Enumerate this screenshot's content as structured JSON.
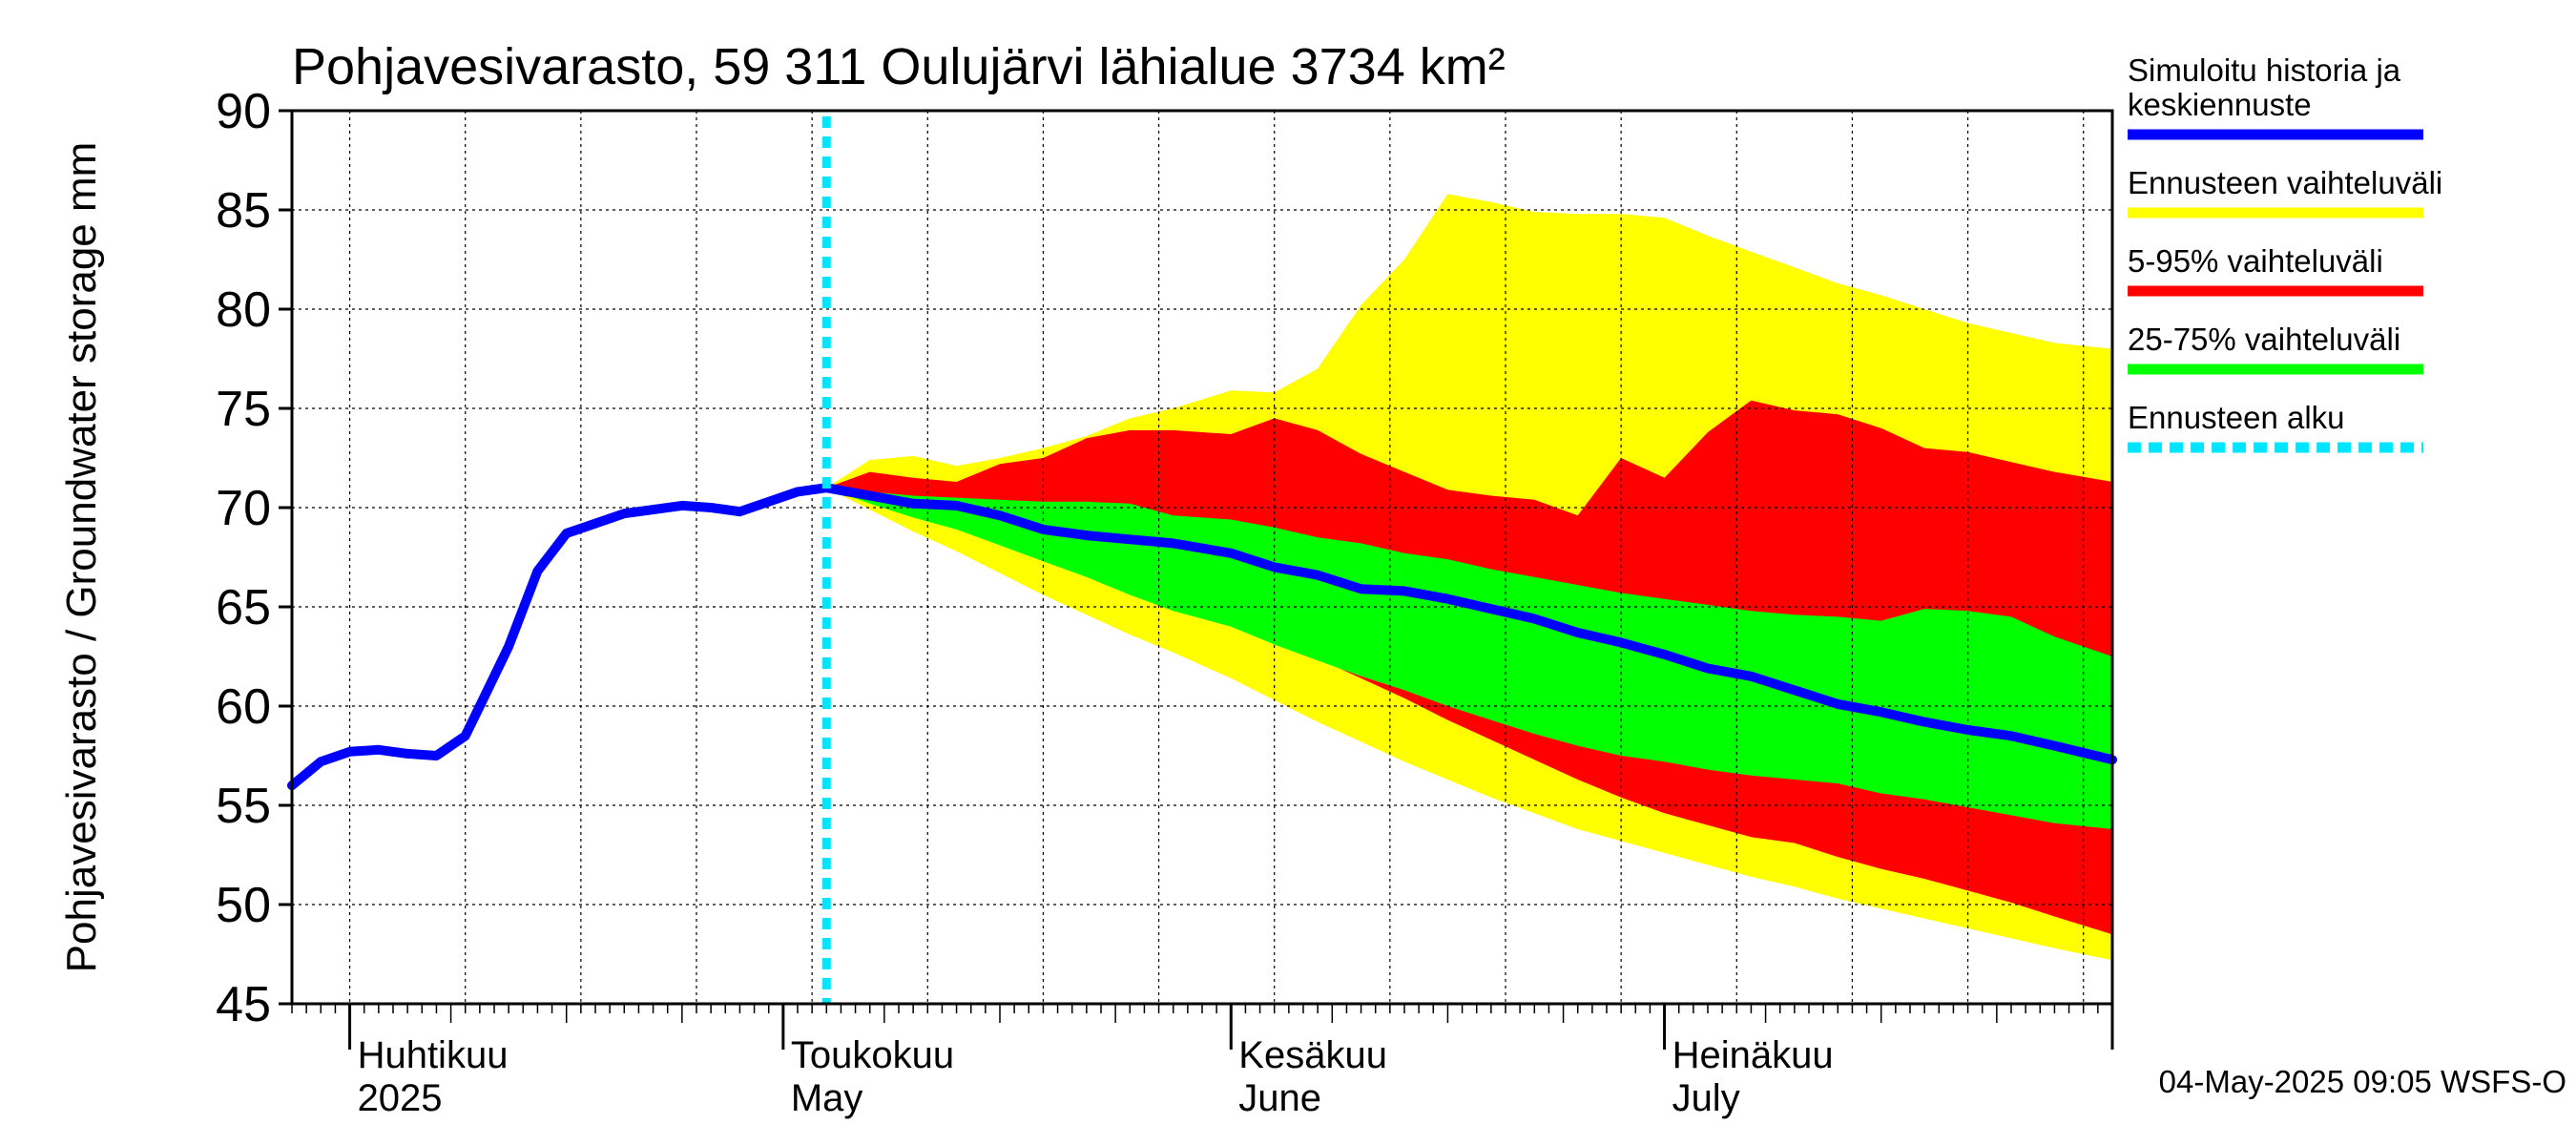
{
  "chart_data": {
    "type": "area",
    "title": "Pohjavesivarasto, 59 311 Oulujärvi lähialue 3734 km²",
    "ylabel": "Pohjavesivarasto / Groundwater storage   mm",
    "ylim": [
      45,
      90
    ],
    "yticks": [
      45,
      50,
      55,
      60,
      65,
      70,
      75,
      80,
      85,
      90
    ],
    "xlim": [
      "2025-03-28",
      "2025-08-01"
    ],
    "grid": true,
    "legend_position": "right",
    "forecast_start": "2025-05-04",
    "month_labels": [
      {
        "date": "2025-04-01",
        "fi": "Huhtikuu",
        "en": "2025"
      },
      {
        "date": "2025-05-01",
        "fi": "Toukokuu",
        "en": "May"
      },
      {
        "date": "2025-06-01",
        "fi": "Kesäkuu",
        "en": "June"
      },
      {
        "date": "2025-07-01",
        "fi": "Heinäkuu",
        "en": "July"
      }
    ],
    "legend": [
      {
        "label": "Simuloitu historia ja\nkeskiennuste",
        "color": "#0000ff",
        "style": "solid"
      },
      {
        "label": "Ennusteen vaihteluväli",
        "color": "#ffff00",
        "style": "solid"
      },
      {
        "label": "5-95% vaihteluväli",
        "color": "#ff0000",
        "style": "solid"
      },
      {
        "label": "25-75% vaihteluväli",
        "color": "#00ff00",
        "style": "solid"
      },
      {
        "label": "Ennusteen alku",
        "color": "#00e5ff",
        "style": "dashed"
      }
    ],
    "history": {
      "x": [
        "2025-03-28",
        "2025-03-30",
        "2025-04-01",
        "2025-04-03",
        "2025-04-05",
        "2025-04-07",
        "2025-04-09",
        "2025-04-10",
        "2025-04-12",
        "2025-04-14",
        "2025-04-16",
        "2025-04-18",
        "2025-04-20",
        "2025-04-22",
        "2025-04-24",
        "2025-04-26",
        "2025-04-28",
        "2025-04-30",
        "2025-05-02",
        "2025-05-04"
      ],
      "y": [
        56.0,
        57.2,
        57.7,
        57.8,
        57.6,
        57.5,
        58.5,
        60.0,
        63.0,
        66.8,
        68.7,
        69.2,
        69.7,
        69.9,
        70.1,
        70.0,
        69.8,
        70.3,
        70.8,
        71.0
      ]
    },
    "median": {
      "x": [
        "2025-05-04",
        "2025-05-07",
        "2025-05-10",
        "2025-05-13",
        "2025-05-16",
        "2025-05-19",
        "2025-05-22",
        "2025-05-25",
        "2025-05-28",
        "2025-06-01",
        "2025-06-04",
        "2025-06-07",
        "2025-06-10",
        "2025-06-13",
        "2025-06-16",
        "2025-06-19",
        "2025-06-22",
        "2025-06-25",
        "2025-06-28",
        "2025-07-01",
        "2025-07-04",
        "2025-07-07",
        "2025-07-10",
        "2025-07-13",
        "2025-07-16",
        "2025-07-19",
        "2025-07-22",
        "2025-07-25",
        "2025-07-28",
        "2025-08-01"
      ],
      "y": [
        71.0,
        70.6,
        70.2,
        70.1,
        69.6,
        68.9,
        68.6,
        68.4,
        68.2,
        67.7,
        67.0,
        66.6,
        65.9,
        65.8,
        65.4,
        64.9,
        64.4,
        63.7,
        63.2,
        62.6,
        61.9,
        61.5,
        60.8,
        60.1,
        59.7,
        59.2,
        58.8,
        58.5,
        58.0,
        57.3
      ]
    },
    "bands": {
      "x": [
        "2025-05-04",
        "2025-05-07",
        "2025-05-10",
        "2025-05-13",
        "2025-05-16",
        "2025-05-19",
        "2025-05-22",
        "2025-05-25",
        "2025-05-28",
        "2025-06-01",
        "2025-06-04",
        "2025-06-07",
        "2025-06-10",
        "2025-06-13",
        "2025-06-16",
        "2025-06-19",
        "2025-06-22",
        "2025-06-25",
        "2025-06-28",
        "2025-07-01",
        "2025-07-04",
        "2025-07-07",
        "2025-07-10",
        "2025-07-13",
        "2025-07-16",
        "2025-07-19",
        "2025-07-22",
        "2025-07-25",
        "2025-07-28",
        "2025-08-01"
      ],
      "min": [
        71.0,
        69.9,
        68.8,
        67.8,
        66.7,
        65.6,
        64.6,
        63.6,
        62.7,
        61.4,
        60.3,
        59.2,
        58.2,
        57.2,
        56.3,
        55.4,
        54.6,
        53.8,
        53.2,
        52.6,
        52.0,
        51.4,
        50.9,
        50.3,
        49.8,
        49.3,
        48.8,
        48.3,
        47.8,
        47.2
      ],
      "max": [
        71.0,
        72.4,
        72.6,
        72.1,
        72.5,
        73.0,
        73.6,
        74.5,
        75.0,
        75.9,
        75.8,
        77.0,
        80.2,
        82.5,
        85.8,
        85.4,
        84.9,
        84.8,
        84.8,
        84.6,
        83.7,
        82.9,
        82.1,
        81.3,
        80.7,
        80.0,
        79.3,
        78.8,
        78.3,
        78.0
      ],
      "p5": [
        71.0,
        70.4,
        69.9,
        69.3,
        68.6,
        67.8,
        66.9,
        66.0,
        65.2,
        64.2,
        63.3,
        62.4,
        61.4,
        60.4,
        59.3,
        58.3,
        57.3,
        56.3,
        55.4,
        54.6,
        54.0,
        53.4,
        53.1,
        52.4,
        51.8,
        51.3,
        50.7,
        50.1,
        49.4,
        48.5
      ],
      "p95": [
        71.0,
        71.8,
        71.5,
        71.3,
        72.2,
        72.5,
        73.5,
        73.9,
        73.9,
        73.7,
        74.5,
        73.9,
        72.7,
        71.8,
        70.9,
        70.6,
        70.4,
        69.6,
        72.5,
        71.5,
        73.8,
        75.4,
        74.9,
        74.7,
        74.0,
        73.0,
        72.8,
        72.3,
        71.8,
        71.3
      ],
      "p25": [
        71.0,
        70.2,
        69.5,
        68.9,
        68.1,
        67.3,
        66.5,
        65.6,
        64.8,
        64.0,
        63.1,
        62.3,
        61.5,
        60.8,
        60.0,
        59.3,
        58.6,
        58.0,
        57.5,
        57.2,
        56.8,
        56.5,
        56.3,
        56.1,
        55.6,
        55.3,
        54.9,
        54.5,
        54.1,
        53.8
      ],
      "p75": [
        71.0,
        70.8,
        70.6,
        70.5,
        70.4,
        70.3,
        70.3,
        70.2,
        69.6,
        69.4,
        69.0,
        68.5,
        68.2,
        67.7,
        67.4,
        66.9,
        66.5,
        66.1,
        65.7,
        65.4,
        65.1,
        64.8,
        64.6,
        64.5,
        64.3,
        64.9,
        64.8,
        64.5,
        63.5,
        62.5
      ]
    },
    "footer": "04-May-2025 09:05 WSFS-O"
  }
}
